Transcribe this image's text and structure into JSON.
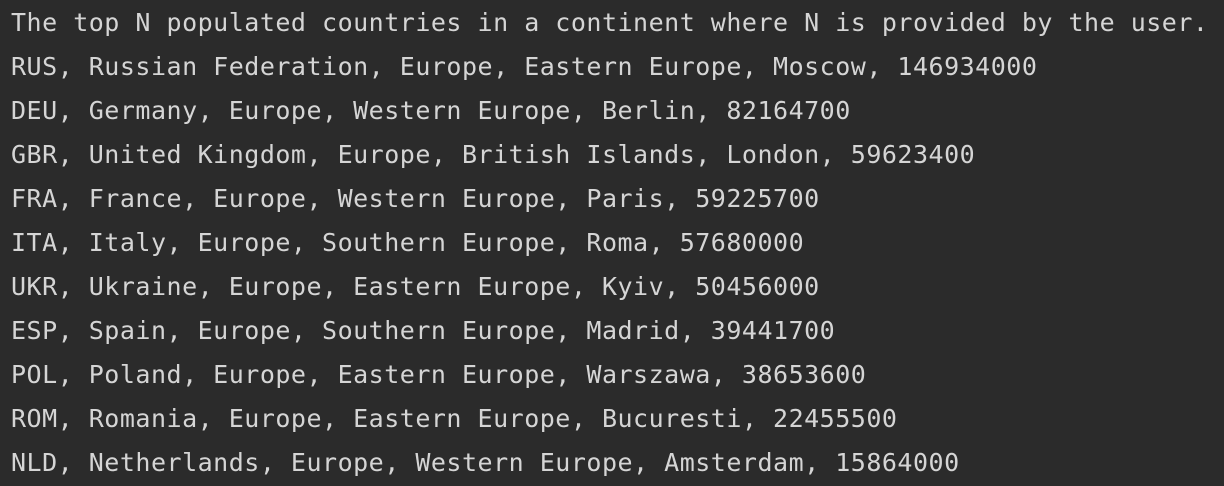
{
  "console": {
    "header": "The top N populated countries in a continent where N is provided by the user.",
    "rows": [
      "RUS, Russian Federation, Europe, Eastern Europe, Moscow, 146934000",
      "DEU, Germany, Europe, Western Europe, Berlin, 82164700",
      "GBR, United Kingdom, Europe, British Islands, London, 59623400",
      "FRA, France, Europe, Western Europe, Paris, 59225700",
      "ITA, Italy, Europe, Southern Europe, Roma, 57680000",
      "UKR, Ukraine, Europe, Eastern Europe, Kyiv, 50456000",
      "ESP, Spain, Europe, Southern Europe, Madrid, 39441700",
      "POL, Poland, Europe, Eastern Europe, Warszawa, 38653600",
      "ROM, Romania, Europe, Eastern Europe, Bucuresti, 22455500",
      "NLD, Netherlands, Europe, Western Europe, Amsterdam, 15864000"
    ]
  },
  "colors": {
    "background": "#2b2b2b",
    "text": "#d5d5d5"
  }
}
